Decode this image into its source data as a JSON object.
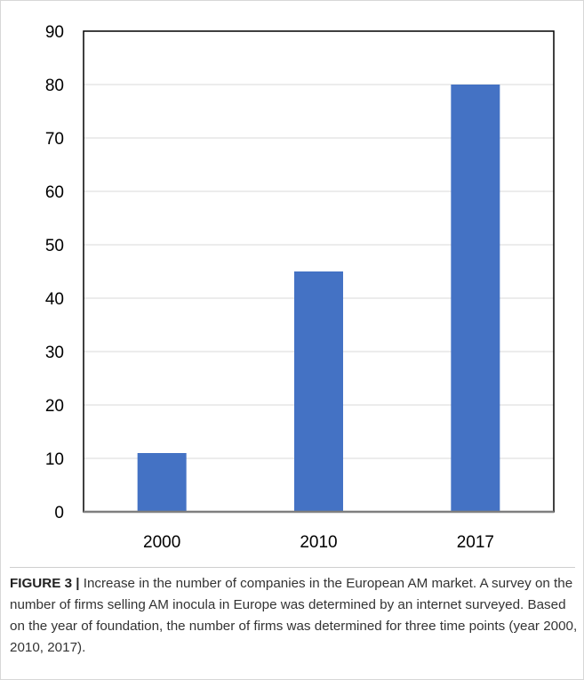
{
  "chart_data": {
    "type": "bar",
    "categories": [
      "2000",
      "2010",
      "2017"
    ],
    "values": [
      11,
      45,
      80
    ],
    "title": "",
    "xlabel": "",
    "ylabel": "",
    "ylim": [
      0,
      90
    ],
    "yticks": [
      "0",
      "10",
      "20",
      "30",
      "40",
      "50",
      "60",
      "70",
      "80",
      "90"
    ],
    "grid": true,
    "bar_color": "#4472C4",
    "grid_color": "#d9d9d9",
    "axis_color": "#000000"
  },
  "caption": {
    "label": "FIGURE 3 |",
    "text": " Increase in the number of companies in the European AM market. A survey on the number of firms selling AM inocula in Europe was determined by an internet surveyed. Based on the year of foundation, the number of firms was determined for three time points (year 2000, 2010, 2017)."
  }
}
